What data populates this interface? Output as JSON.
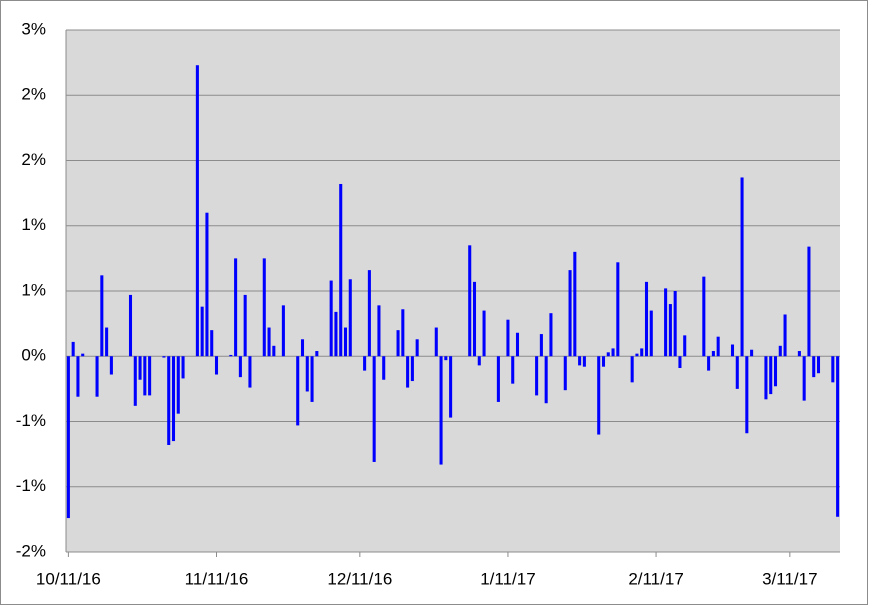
{
  "chart_data": {
    "type": "bar",
    "color": "#0000ff",
    "grid": true,
    "x": [
      "10/11/16",
      "10/12/16",
      "10/13/16",
      "10/14/16",
      "10/17/16",
      "10/18/16",
      "10/19/16",
      "10/20/16",
      "10/24/16",
      "10/25/16",
      "10/26/16",
      "10/27/16",
      "10/28/16",
      "10/31/16",
      "11/1/16",
      "11/2/16",
      "11/3/16",
      "11/4/16",
      "11/7/16",
      "11/8/16",
      "11/9/16",
      "11/10/16",
      "11/11/16",
      "11/14/16",
      "11/15/16",
      "11/16/16",
      "11/17/16",
      "11/18/16",
      "11/21/16",
      "11/22/16",
      "11/23/16",
      "11/25/16",
      "11/28/16",
      "11/29/16",
      "11/30/16",
      "12/1/16",
      "12/2/16",
      "12/5/16",
      "12/6/16",
      "12/7/16",
      "12/8/16",
      "12/9/16",
      "12/12/16",
      "12/13/16",
      "12/14/16",
      "12/15/16",
      "12/16/16",
      "12/19/16",
      "12/20/16",
      "12/21/16",
      "12/22/16",
      "12/23/16",
      "12/27/16",
      "12/28/16",
      "12/29/16",
      "12/30/16",
      "1/3/17",
      "1/4/17",
      "1/5/17",
      "1/6/17",
      "1/9/17",
      "1/11/17",
      "1/12/17",
      "1/13/17",
      "1/17/17",
      "1/18/17",
      "1/19/17",
      "1/20/17",
      "1/23/17",
      "1/24/17",
      "1/25/17",
      "1/26/17",
      "1/27/17",
      "1/30/17",
      "1/31/17",
      "2/1/17",
      "2/2/17",
      "2/3/17",
      "2/6/17",
      "2/7/17",
      "2/8/17",
      "2/9/17",
      "2/10/17",
      "2/13/17",
      "2/14/17",
      "2/15/17",
      "2/16/17",
      "2/17/17",
      "2/21/17",
      "2/22/17",
      "2/23/17",
      "2/24/17",
      "2/27/17",
      "2/28/17",
      "3/1/17",
      "3/2/17",
      "3/3/17",
      "3/6/17",
      "3/7/17",
      "3/8/17",
      "3/9/17",
      "3/10/17",
      "3/13/17",
      "3/14/17",
      "3/15/17",
      "3/16/17",
      "3/17/17",
      "3/20/17",
      "3/21/17"
    ],
    "values": [
      -1.24,
      0.11,
      -0.31,
      0.02,
      -0.31,
      0.62,
      0.22,
      -0.14,
      0.47,
      -0.38,
      -0.18,
      -0.3,
      -0.3,
      -0.01,
      -0.68,
      -0.65,
      -0.44,
      -0.17,
      2.23,
      0.38,
      1.1,
      0.2,
      -0.14,
      0.01,
      0.75,
      -0.16,
      0.47,
      -0.24,
      0.75,
      0.22,
      0.08,
      0.39,
      -0.53,
      0.13,
      -0.27,
      -0.35,
      0.04,
      0.58,
      0.34,
      1.32,
      0.22,
      0.59,
      -0.11,
      0.66,
      -0.81,
      0.39,
      -0.18,
      0.2,
      0.36,
      -0.24,
      -0.19,
      0.13,
      0.22,
      -0.83,
      -0.03,
      -0.47,
      0.85,
      0.57,
      -0.07,
      0.35,
      -0.35,
      0.28,
      -0.21,
      0.18,
      -0.3,
      0.17,
      -0.36,
      0.33,
      -0.26,
      0.66,
      0.8,
      -0.07,
      -0.08,
      -0.6,
      -0.08,
      0.03,
      0.06,
      0.72,
      -0.2,
      0.02,
      0.06,
      0.57,
      0.35,
      0.52,
      0.4,
      0.5,
      -0.09,
      0.16,
      0.61,
      -0.11,
      0.04,
      0.15,
      0.09,
      -0.25,
      1.37,
      -0.59,
      0.05,
      -0.33,
      -0.29,
      -0.23,
      0.08,
      0.32,
      0.04,
      -0.34,
      0.84,
      -0.16,
      -0.13,
      -0.2,
      -1.23
    ],
    "xlim": [
      "10/11/16",
      "3/21/17"
    ],
    "xticks": [
      "10/11/16",
      "11/11/16",
      "12/11/16",
      "1/11/17",
      "2/11/17",
      "3/11/17"
    ],
    "ylim": [
      -1.5,
      2.5
    ],
    "yticks": [
      {
        "value": 2.5,
        "label": "3%"
      },
      {
        "value": 2,
        "label": "2%"
      },
      {
        "value": 1.5,
        "label": "2%"
      },
      {
        "value": 1,
        "label": "1%"
      },
      {
        "value": 0.5,
        "label": "1%"
      },
      {
        "value": 0,
        "label": "0%"
      },
      {
        "value": -0.5,
        "label": "-1%"
      },
      {
        "value": -1,
        "label": "-1%"
      },
      {
        "value": -1.5,
        "label": "-2%"
      }
    ]
  }
}
